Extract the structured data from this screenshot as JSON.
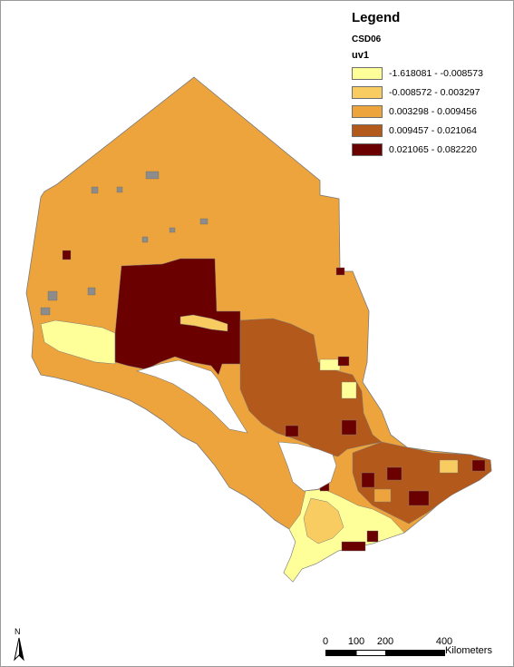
{
  "legend": {
    "title": "Legend",
    "layer": "CSD06",
    "field": "uv1",
    "classes": [
      {
        "label": "-1.618081 - -0.008573",
        "color": "#ffff99"
      },
      {
        "label": "-0.008572 - 0.003297",
        "color": "#f8cc60"
      },
      {
        "label": "0.003298 - 0.009456",
        "color": "#eea43c"
      },
      {
        "label": "0.009457 - 0.021064",
        "color": "#b3591c"
      },
      {
        "label": "0.021065 - 0.082220",
        "color": "#6b0000"
      }
    ]
  },
  "north_arrow": {
    "letter": "N"
  },
  "scale_bar": {
    "ticks": [
      "0",
      "100",
      "200",
      "400"
    ],
    "units": "Kilometers"
  },
  "colors": {
    "boundary": "#7a7a7a",
    "water": "#ffffff",
    "frame": "#9a9a9a"
  }
}
